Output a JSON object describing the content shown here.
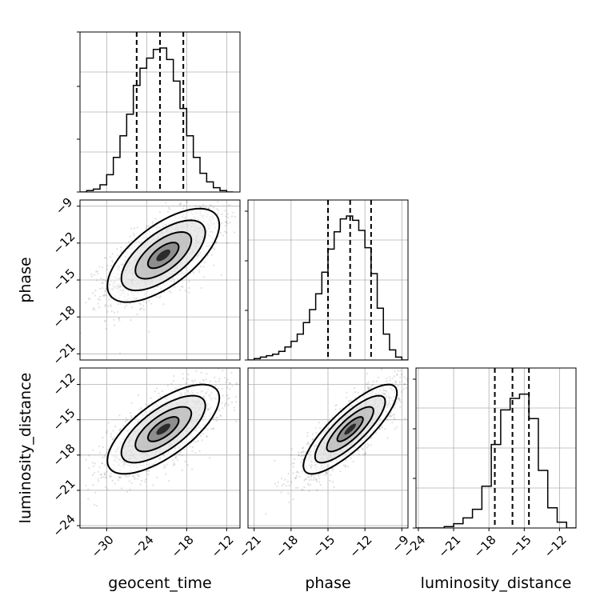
{
  "chart_data": {
    "type": "corner",
    "parameters": [
      "geocent_time",
      "phase",
      "luminosity_distance"
    ],
    "axis_labels": {
      "x": [
        "geocent_time",
        "phase",
        "luminosity_distance"
      ],
      "y": [
        "",
        "phase",
        "luminosity_distance"
      ]
    },
    "ranges": {
      "geocent_time": [
        -34,
        -10
      ],
      "phase": [
        -21.5,
        -8.5
      ],
      "luminosity_distance": [
        -24.2,
        -10.6
      ]
    },
    "ticks": {
      "geocent_time": [
        -30,
        -24,
        -18,
        -12
      ],
      "phase": [
        -21,
        -18,
        -15,
        -12,
        -9
      ],
      "luminosity_distance": [
        -24,
        -21,
        -18,
        -15,
        -12
      ]
    },
    "quantiles_dashed": {
      "geocent_time": [
        -25.5,
        -22.0,
        -18.5
      ],
      "phase": [
        -15.0,
        -13.2,
        -11.5
      ],
      "luminosity_distance": [
        -17.5,
        -16.0,
        -14.6
      ]
    },
    "histograms": [
      {
        "param": "geocent_time",
        "bin_edges": [
          -34,
          -33,
          -32,
          -31,
          -30,
          -29,
          -28,
          -27,
          -26,
          -25,
          -24,
          -23,
          -22,
          -21,
          -20,
          -19,
          -18,
          -17,
          -16,
          -15,
          -14,
          -13,
          -12,
          -11
        ],
        "counts": [
          0,
          0.01,
          0.02,
          0.05,
          0.12,
          0.24,
          0.39,
          0.54,
          0.74,
          0.86,
          0.93,
          0.99,
          1.0,
          0.92,
          0.77,
          0.58,
          0.39,
          0.24,
          0.13,
          0.07,
          0.03,
          0.01,
          0
        ]
      },
      {
        "param": "phase",
        "bin_edges": [
          -21.5,
          -21,
          -20.5,
          -20,
          -19.5,
          -19,
          -18.5,
          -18,
          -17.5,
          -17,
          -16.5,
          -16,
          -15.5,
          -15,
          -14.5,
          -14,
          -13.5,
          -13,
          -12.5,
          -12,
          -11.5,
          -11,
          -10.5,
          -10,
          -9.5,
          -9,
          -8.5
        ],
        "counts": [
          0,
          0.01,
          0.02,
          0.03,
          0.04,
          0.06,
          0.09,
          0.13,
          0.18,
          0.26,
          0.35,
          0.46,
          0.61,
          0.77,
          0.89,
          0.98,
          1.0,
          0.97,
          0.9,
          0.78,
          0.6,
          0.36,
          0.18,
          0.07,
          0.02,
          0
        ]
      },
      {
        "param": "luminosity_distance",
        "bin_edges": [
          -24.2,
          -23.4,
          -22.6,
          -21.8,
          -21,
          -20.2,
          -19.4,
          -18.6,
          -17.8,
          -17,
          -16.2,
          -15.4,
          -14.6,
          -13.8,
          -13,
          -12.2,
          -11.4,
          -10.6
        ],
        "counts": [
          0,
          0,
          0,
          0.01,
          0.03,
          0.07,
          0.13,
          0.29,
          0.58,
          0.82,
          0.9,
          0.93,
          0.76,
          0.4,
          0.14,
          0.04,
          0
        ]
      }
    ],
    "pairs": [
      {
        "x": "geocent_time",
        "y": "phase",
        "mean": [
          -21.5,
          -13.0
        ],
        "sd": [
          4.2,
          1.9
        ],
        "corr": 0.65
      },
      {
        "x": "geocent_time",
        "y": "luminosity_distance",
        "mean": [
          -21.5,
          -15.8
        ],
        "sd": [
          4.2,
          1.9
        ],
        "corr": 0.7
      },
      {
        "x": "phase",
        "y": "luminosity_distance",
        "mean": [
          -13.2,
          -15.8
        ],
        "sd": [
          1.9,
          1.9
        ],
        "corr": 0.82
      }
    ],
    "grid": true
  }
}
